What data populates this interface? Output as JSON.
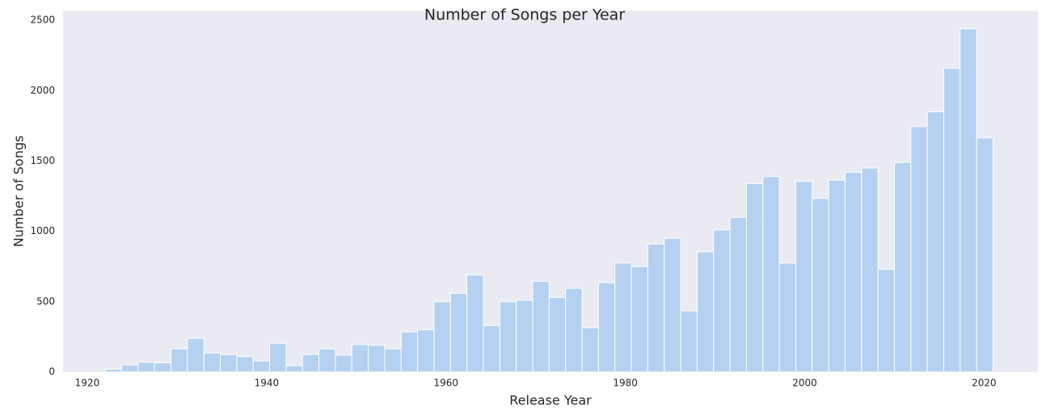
{
  "chart_data": {
    "type": "histogram",
    "title": "Number of Songs per Year",
    "x_label": "Release Year",
    "y_label": "Number of Songs",
    "bins": [
      1922,
      1923.83,
      1925.67,
      1927.5,
      1929.33,
      1931.17,
      1933,
      1934.83,
      1936.67,
      1938.5,
      1940.33,
      1942.17,
      1944,
      1945.83,
      1947.67,
      1949.5,
      1951.33,
      1953.17,
      1955,
      1956.83,
      1958.67,
      1960.5,
      1962.33,
      1964.17,
      1966,
      1967.83,
      1969.67,
      1971.5,
      1973.33,
      1975.17,
      1977,
      1978.83,
      1980.67,
      1982.5,
      1984.33,
      1986.17,
      1988,
      1989.83,
      1991.67,
      1993.5,
      1995.33,
      1997.17,
      1999,
      2000.83,
      2002.67,
      2004.5,
      2006.33,
      2008.17,
      2010,
      2011.83,
      2013.67,
      2015.5,
      2017.33,
      2019.17,
      2021
    ],
    "counts": [
      20,
      50,
      70,
      65,
      165,
      240,
      135,
      125,
      110,
      80,
      205,
      45,
      125,
      165,
      120,
      195,
      190,
      165,
      285,
      300,
      500,
      560,
      690,
      330,
      500,
      510,
      645,
      530,
      595,
      315,
      635,
      775,
      750,
      910,
      950,
      435,
      855,
      1010,
      1100,
      1340,
      1390,
      775,
      1355,
      1235,
      1365,
      1420,
      1450,
      730,
      1490,
      1745,
      1850,
      2160,
      2440,
      1665
    ],
    "color": "#b4d1f2",
    "xlim": [
      1917.3,
      2026
    ],
    "ylim": [
      0,
      2570
    ],
    "xticks": [
      1920,
      1940,
      1960,
      1980,
      2000,
      2020
    ],
    "yticks": [
      0,
      500,
      1000,
      1500,
      2000,
      2500
    ],
    "grid": false
  }
}
